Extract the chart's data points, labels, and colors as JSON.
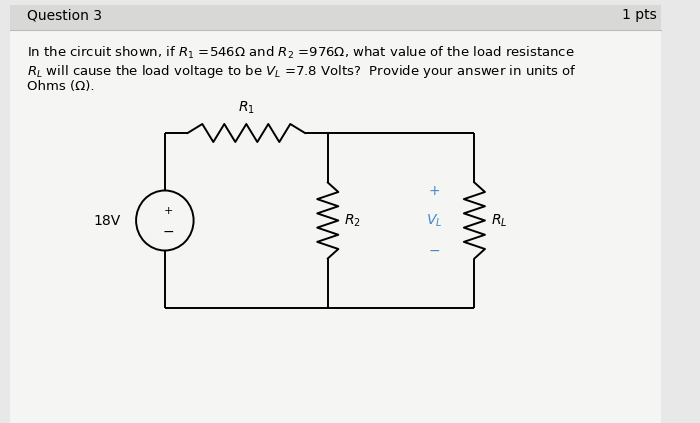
{
  "title": "Question 3",
  "pts_label": "1 pts",
  "problem_text_line1": "In the circuit shown, if $R_1$ =546Ω and $R_2$ =976Ω, what value of the load resistance",
  "problem_text_line2": "$R_L$ will cause the load voltage to be $V_L$ =7.8 Volts?  Provide your answer in units of",
  "problem_text_line3": "Ohms (Ω).",
  "voltage_source": "18V",
  "R1_label": "$R_1$",
  "R2_label": "$R_2$",
  "RL_label": "$R_L$",
  "VL_label": "$V_L$",
  "plus_label": "+",
  "minus_label": "−",
  "source_plus": "+",
  "source_minus": "−",
  "bg_color": "#e8e8e8",
  "inner_bg": "#f5f5f3",
  "line_color": "#000000",
  "text_color": "#000000",
  "blue_color": "#4488cc",
  "font_size_title": 10,
  "font_size_text": 9.5,
  "font_size_circuit": 10
}
